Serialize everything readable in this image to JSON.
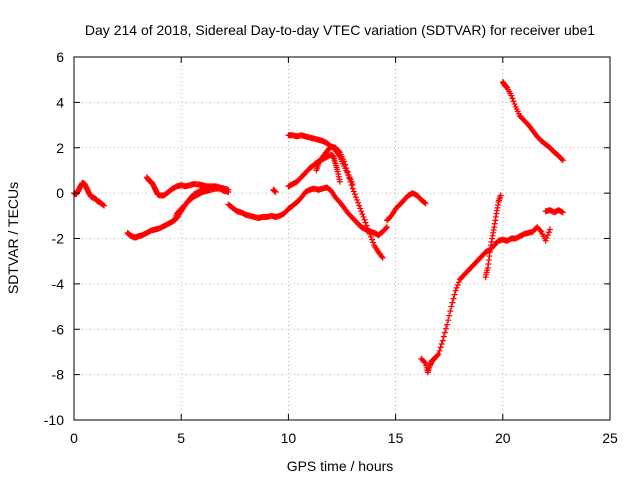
{
  "chart_data": {
    "type": "scatter",
    "title": "Day 214 of 2018, Sidereal Day-to-day VTEC variation (SDTVAR) for receiver ube1",
    "xlabel": "GPS time / hours",
    "ylabel": "SDTVAR / TECUs",
    "xlim": [
      0,
      25
    ],
    "ylim": [
      -10,
      6
    ],
    "xticks": [
      0,
      5,
      10,
      15,
      20,
      25
    ],
    "yticks": [
      -10,
      -8,
      -6,
      -4,
      -2,
      0,
      2,
      4,
      6
    ],
    "xtick_labels": [
      "0",
      "5",
      "10",
      "15",
      "20",
      "25"
    ],
    "ytick_labels": [
      "-10",
      "-8",
      "-6",
      "-4",
      "-2",
      "0",
      "2",
      "4",
      "6"
    ],
    "grid": true,
    "marker": "plus",
    "color": "#ff0000",
    "series": [
      {
        "x": [
          0.0,
          0.1,
          0.2,
          0.3,
          0.4,
          0.5,
          0.6,
          0.7,
          0.8,
          0.9,
          1.0,
          1.1,
          1.2,
          1.4
        ],
        "y": [
          0.0,
          -0.05,
          0.1,
          0.3,
          0.45,
          0.4,
          0.2,
          0.0,
          -0.15,
          -0.2,
          -0.25,
          -0.35,
          -0.4,
          -0.55
        ]
      },
      {
        "x": [
          2.5,
          2.6,
          2.7,
          2.8,
          2.9,
          3.0,
          3.2,
          3.4,
          3.6,
          3.8,
          4.0,
          4.2,
          4.4,
          4.6,
          4.8,
          5.0,
          5.2,
          5.4,
          5.6,
          5.8,
          6.0,
          6.2,
          6.4,
          6.6,
          6.8,
          7.0,
          7.2
        ],
        "y": [
          -1.75,
          -1.85,
          -1.9,
          -1.95,
          -1.95,
          -1.9,
          -1.85,
          -1.75,
          -1.65,
          -1.6,
          -1.55,
          -1.45,
          -1.35,
          -1.25,
          -1.1,
          -0.8,
          -0.5,
          -0.3,
          -0.15,
          -0.05,
          0.05,
          0.1,
          0.15,
          0.2,
          0.2,
          0.1,
          0.05
        ]
      },
      {
        "x": [
          3.4,
          3.5,
          3.6,
          3.7,
          3.8,
          3.9,
          4.0,
          4.2,
          4.4,
          4.6,
          4.8,
          5.0,
          5.2,
          5.4,
          5.6,
          5.8,
          6.0,
          6.2,
          6.4,
          6.6,
          6.8,
          7.0,
          7.2
        ],
        "y": [
          0.7,
          0.55,
          0.5,
          0.35,
          0.15,
          -0.05,
          -0.1,
          -0.1,
          0.05,
          0.2,
          0.3,
          0.35,
          0.3,
          0.35,
          0.4,
          0.38,
          0.35,
          0.3,
          0.3,
          0.3,
          0.25,
          0.2,
          0.15
        ]
      },
      {
        "x": [
          4.7,
          4.8,
          5.0,
          5.2,
          5.4,
          5.6,
          5.8,
          6.0,
          6.2,
          6.4,
          6.6
        ],
        "y": [
          -1.2,
          -0.9,
          -0.7,
          -0.5,
          -0.25,
          -0.05,
          0.05,
          0.15,
          0.2,
          0.25,
          0.3
        ]
      },
      {
        "x": [
          7.2,
          7.4,
          7.6,
          7.8,
          8.0,
          8.2,
          8.4,
          8.6,
          8.8,
          9.0,
          9.2,
          9.4,
          9.6,
          9.8,
          10.0,
          10.2,
          10.4,
          10.6,
          10.8,
          11.0,
          11.2,
          11.4,
          11.6,
          11.8,
          12.0,
          12.2,
          12.4,
          12.6,
          12.8,
          13.0,
          13.2,
          13.4,
          13.6,
          13.8,
          14.0,
          14.2,
          14.4,
          14.6
        ],
        "y": [
          -0.5,
          -0.65,
          -0.8,
          -0.85,
          -0.95,
          -1.0,
          -1.05,
          -1.1,
          -1.05,
          -1.05,
          -1.0,
          -1.05,
          -1.0,
          -0.9,
          -0.7,
          -0.55,
          -0.4,
          -0.2,
          0.05,
          0.15,
          0.2,
          0.15,
          0.2,
          0.25,
          0.1,
          -0.2,
          -0.4,
          -0.65,
          -0.9,
          -1.1,
          -1.3,
          -1.5,
          -1.6,
          -1.7,
          -1.75,
          -1.85,
          -1.7,
          -1.5
        ]
      },
      {
        "x": [
          9.3,
          9.4
        ],
        "y": [
          0.15,
          0.05
        ]
      },
      {
        "x": [
          10.0,
          10.2,
          10.4,
          10.6,
          10.8,
          11.0,
          11.2,
          11.4,
          11.6,
          11.8,
          12.0,
          12.1,
          12.2,
          12.3,
          12.4
        ],
        "y": [
          0.3,
          0.4,
          0.5,
          0.7,
          0.9,
          1.1,
          1.25,
          1.4,
          1.5,
          1.6,
          1.7,
          1.6,
          1.3,
          0.95,
          0.5
        ]
      },
      {
        "x": [
          10.0,
          10.2,
          10.4,
          10.6,
          10.8,
          11.0,
          11.2,
          11.4,
          11.6,
          11.8,
          12.0,
          12.2,
          12.4,
          12.6,
          12.8,
          13.0
        ],
        "y": [
          2.55,
          2.55,
          2.5,
          2.55,
          2.5,
          2.45,
          2.4,
          2.35,
          2.3,
          2.2,
          2.05,
          1.9,
          1.6,
          1.2,
          0.8,
          0.4
        ]
      },
      {
        "x": [
          11.3,
          11.4,
          11.6,
          11.8,
          12.0,
          12.2,
          12.4,
          12.6,
          12.8,
          13.0,
          13.2,
          13.4,
          13.6,
          13.8,
          14.0,
          14.2,
          14.4
        ],
        "y": [
          1.0,
          1.3,
          1.6,
          1.85,
          2.05,
          2.0,
          1.8,
          1.4,
          0.8,
          0.2,
          -0.3,
          -0.8,
          -1.3,
          -1.8,
          -2.3,
          -2.6,
          -2.85
        ]
      },
      {
        "x": [
          14.6,
          14.8,
          15.0,
          15.2,
          15.4,
          15.6,
          15.8,
          16.0,
          16.2,
          16.4
        ],
        "y": [
          -1.2,
          -1.0,
          -0.7,
          -0.5,
          -0.3,
          -0.1,
          0.0,
          -0.1,
          -0.3,
          -0.45
        ]
      },
      {
        "x": [
          16.2,
          16.4,
          16.5,
          16.6,
          16.7,
          16.8,
          17.0,
          17.2,
          17.4,
          17.6,
          17.8,
          18.0,
          18.2,
          18.4,
          18.6,
          18.8,
          19.0,
          19.2,
          19.4,
          19.6,
          19.8,
          20.0,
          20.2,
          20.4,
          20.6,
          20.8,
          21.0,
          21.2,
          21.4,
          21.6,
          21.8,
          22.0,
          22.2
        ],
        "y": [
          -7.3,
          -7.5,
          -7.9,
          -7.6,
          -7.4,
          -7.3,
          -7.1,
          -6.5,
          -5.8,
          -5.0,
          -4.3,
          -3.8,
          -3.6,
          -3.4,
          -3.2,
          -3.0,
          -2.8,
          -2.6,
          -2.5,
          -2.3,
          -2.1,
          -2.05,
          -2.1,
          -2.0,
          -2.0,
          -1.9,
          -1.8,
          -1.75,
          -1.7,
          -1.5,
          -1.7,
          -2.1,
          -1.6
        ]
      },
      {
        "x": [
          19.2,
          19.3,
          19.4,
          19.5,
          19.6,
          19.7,
          19.8,
          19.9
        ],
        "y": [
          -3.7,
          -3.3,
          -2.6,
          -2.0,
          -1.5,
          -0.9,
          -0.4,
          -0.1
        ]
      },
      {
        "x": [
          20.0,
          20.1,
          20.2,
          20.4,
          20.6,
          20.8,
          21.0,
          21.2,
          21.4,
          21.6,
          21.8,
          22.0,
          22.2,
          22.4,
          22.6,
          22.8
        ],
        "y": [
          4.9,
          4.75,
          4.65,
          4.3,
          3.8,
          3.4,
          3.2,
          3.0,
          2.75,
          2.5,
          2.3,
          2.15,
          2.0,
          1.8,
          1.65,
          1.45
        ]
      },
      {
        "x": [
          22.0,
          22.2,
          22.4,
          22.6,
          22.8
        ],
        "y": [
          -0.8,
          -0.75,
          -0.85,
          -0.75,
          -0.85
        ]
      }
    ]
  }
}
